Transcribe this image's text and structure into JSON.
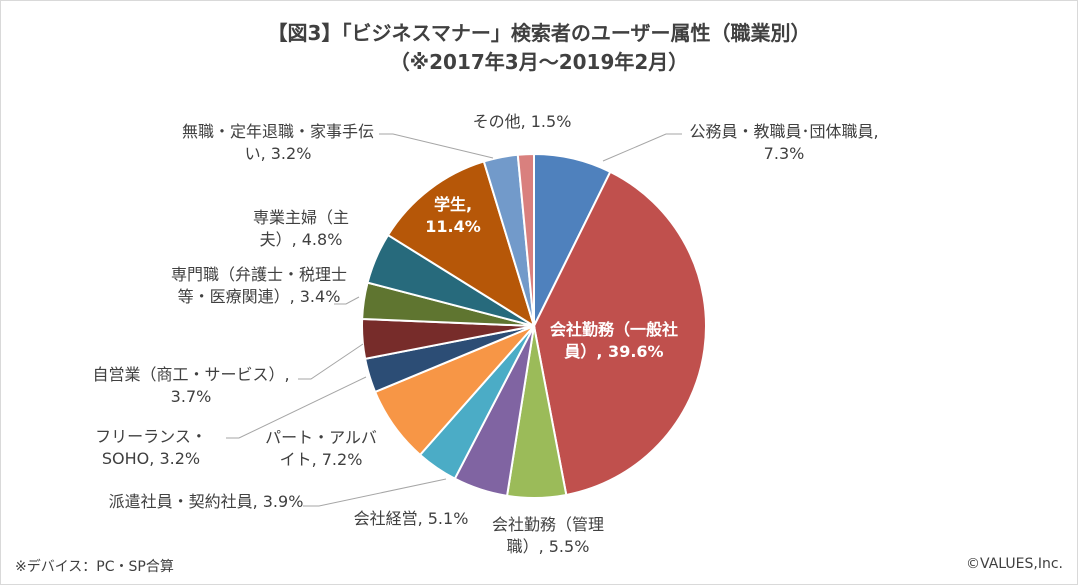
{
  "chart_data": {
    "type": "pie",
    "title": "【図3】「ビジネスマナー」検索者のユーザー属性（職業別）",
    "subtitle": "（※2017年3月～2019年2月）",
    "values": [
      7.3,
      39.6,
      5.5,
      5.1,
      3.9,
      7.2,
      3.2,
      3.7,
      3.4,
      4.8,
      11.4,
      3.2,
      1.5
    ],
    "value_labels": [
      "公務員・教職員･団体職員, 7.3%",
      "会社勤務（一般社員）, 39.6%",
      "会社勤務（管理職）, 5.5%",
      "会社経営, 5.1%",
      "派遣社員・契約社員, 3.9%",
      "パート・アルバイト, 7.2%",
      "フリーランス・SOHO, 3.2%",
      "自営業（商工・サービス）, 3.7%",
      "専門職（弁護士・税理士等・医療関連）, 3.4%",
      "専業主婦（主夫）, 4.8%",
      "学生, 11.4%",
      "無職・定年退職・家事手伝い, 3.2%",
      "その他, 1.5%"
    ],
    "colors": [
      "#4f81bd",
      "#c0504d",
      "#9bbb59",
      "#8064a2",
      "#4bacc6",
      "#f79646",
      "#2c4d75",
      "#772c2a",
      "#5f7530",
      "#276a7c",
      "#b65708",
      "#729aca",
      "#d9807e"
    ],
    "note": "※デバイス：PC・SP合算",
    "source": "©VALUES,Inc."
  }
}
